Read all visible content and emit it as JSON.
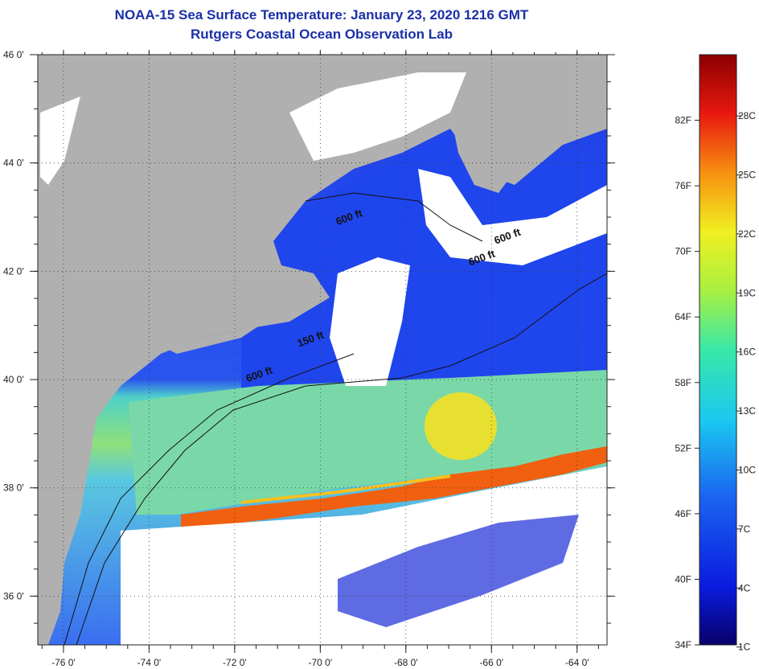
{
  "title": {
    "line1": "NOAA-15 Sea Surface Temperature:  January 23, 2020 1216 GMT",
    "line2": "Rutgers Coastal Ocean Observation Lab"
  },
  "map": {
    "lon_labels": [
      "-76 0'",
      "-74 0'",
      "-72 0'",
      "-70 0'",
      "-68 0'",
      "-66 0'",
      "-64 0'"
    ],
    "lon_values": [
      -76,
      -74,
      -72,
      -70,
      -68,
      -66,
      -64
    ],
    "lat_labels": [
      "46 0'",
      "44 0'",
      "42 0'",
      "40 0'",
      "38 0'",
      "36 0'"
    ],
    "lat_values": [
      46,
      44,
      42,
      40,
      38,
      36
    ],
    "lon_range": [
      -76.6,
      -63.3
    ],
    "lat_range": [
      35.1,
      46.0
    ],
    "contour_labels": [
      {
        "text": "600 ft",
        "lon": -69.6,
        "lat": 42.85
      },
      {
        "text": "600 ft",
        "lon": -65.9,
        "lat": 42.5
      },
      {
        "text": "600 ft",
        "lon": -66.5,
        "lat": 42.1
      },
      {
        "text": "150 ft",
        "lon": -70.5,
        "lat": 40.6
      },
      {
        "text": "600 ft",
        "lon": -71.7,
        "lat": 39.95
      }
    ],
    "colors": {
      "land": "#b0b0b0",
      "cloud": "#ffffff",
      "cold": "#1a3fe6",
      "cool": "#3aa0f0",
      "mid": "#6fe0b0",
      "warm": "#f0e040",
      "gulfstream": "#f05a10"
    }
  },
  "colorbar": {
    "fahrenheit_labels": [
      "82F",
      "76F",
      "70F",
      "64F",
      "58F",
      "52F",
      "46F",
      "40F",
      "34F"
    ],
    "celsius_labels": [
      "28C",
      "25C",
      "22C",
      "19C",
      "16C",
      "13C",
      "10C",
      "7C",
      "4C",
      "1C"
    ],
    "fahrenheit_values": [
      82,
      76,
      70,
      64,
      58,
      52,
      46,
      40,
      34
    ],
    "celsius_values": [
      28,
      25,
      22,
      19,
      16,
      13,
      10,
      7,
      4,
      1
    ],
    "range_f": [
      34,
      88
    ]
  }
}
